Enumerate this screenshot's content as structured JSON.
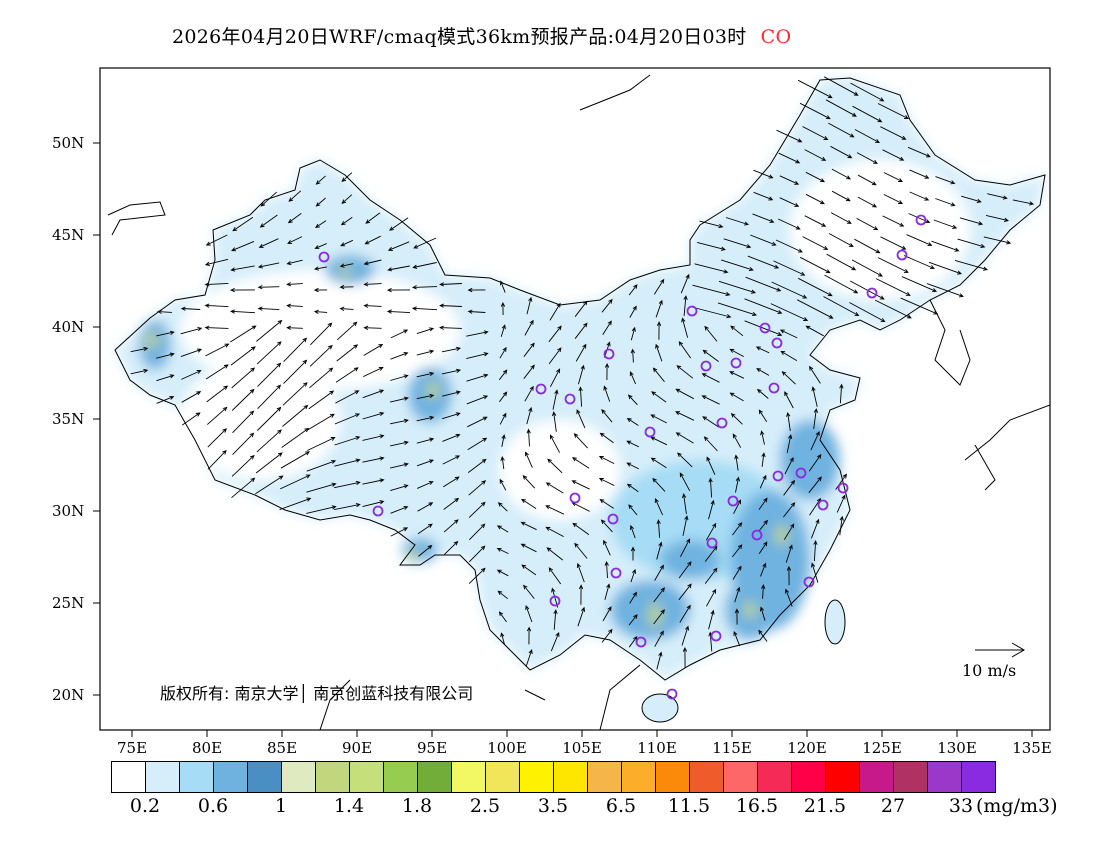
{
  "title": {
    "main": "2026年04月20日WRF/cmaq模式36km预报产品:04月20日03时",
    "species": "CO",
    "species_color": "#ff2a2a"
  },
  "axes": {
    "lat_labels": [
      "50N",
      "45N",
      "40N",
      "35N",
      "30N",
      "25N",
      "20N"
    ],
    "lon_labels": [
      "75E",
      "80E",
      "85E",
      "90E",
      "95E",
      "100E",
      "105E",
      "110E",
      "115E",
      "120E",
      "125E",
      "130E",
      "135E"
    ]
  },
  "copyright": "版权所有: 南京大学│ 南京创蓝科技有限公司",
  "wind_scale": {
    "label": "10 m/s"
  },
  "legend": {
    "colors": [
      "#ffffff",
      "#d6eefa",
      "#a6dcf5",
      "#6fb2e0",
      "#4a8fc4",
      "#e0eac0",
      "#c2d67e",
      "#c5e07a",
      "#96cd50",
      "#71ad38",
      "#f2f764",
      "#f1e55a",
      "#fff200",
      "#ffe600",
      "#f5b549",
      "#fcae2a",
      "#fc8a0a",
      "#f05b2c",
      "#fe6767",
      "#f62a56",
      "#ff0048",
      "#ff0000",
      "#c8198a",
      "#b03262",
      "#9b38c9",
      "#8a2be2"
    ],
    "labels": [
      "0.2",
      "0.6",
      "1",
      "1.4",
      "1.8",
      "2.5",
      "3.5",
      "6.5",
      "11.5",
      "16.5",
      "21.5",
      "27",
      "33"
    ],
    "unit": "(mg/m3)"
  },
  "station_color": "#8a2be2"
}
